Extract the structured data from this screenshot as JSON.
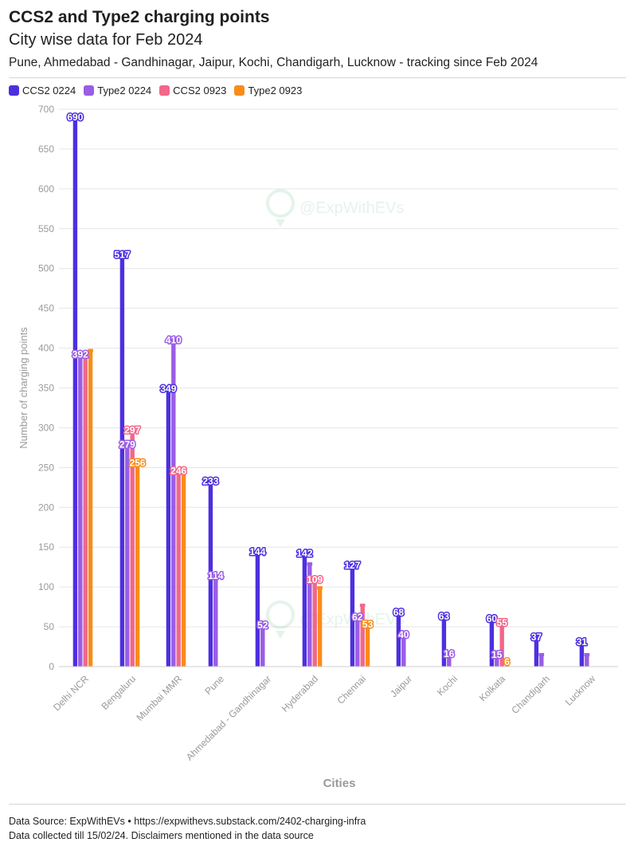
{
  "header": {
    "title": "CCS2 and Type2 charging points",
    "subtitle": "City wise data for Feb 2024",
    "description": "Pune, Ahmedabad - Gandhinagar, Jaipur, Kochi, Chandigarh, Lucknow - tracking since Feb 2024"
  },
  "watermark": "@ExpWithEVs",
  "footer": {
    "source": "Data Source: ExpWithEVs • https://expwithevs.substack.com/2402-charging-infra",
    "note": "Data collected till 15/02/24. Disclaimers mentioned in the data source"
  },
  "colors": {
    "ccs2_0224": "#4e2fe0",
    "type2_0224": "#9b5de5",
    "ccs2_0923": "#f2678a",
    "type2_0923": "#f98c1a",
    "grid": "#e6e6e6",
    "axis_text": "#9a9a9a"
  },
  "chart_data": {
    "type": "bar",
    "title": "CCS2 and Type2 charging points",
    "subtitle": "City wise data for Feb 2024",
    "xlabel": "Cities",
    "ylabel": "Number of charging points",
    "ylim": [
      0,
      700
    ],
    "yticks": [
      0,
      50,
      100,
      150,
      200,
      250,
      300,
      350,
      400,
      450,
      500,
      550,
      600,
      650,
      700
    ],
    "grid": true,
    "legend_position": "top-left",
    "categories": [
      "Delhi NCR",
      "Bengaluru",
      "Mumbai MMR",
      "Pune",
      "Ahmedabad - Gandhinagar",
      "Hyderabad",
      "Chennai",
      "Jaipur",
      "Kochi",
      "Kolkata",
      "Chandigarh",
      "Lucknow"
    ],
    "series": [
      {
        "name": "CCS2 0224",
        "color": "#4e2fe0",
        "values": [
          690,
          517,
          349,
          233,
          144,
          142,
          127,
          68,
          63,
          60,
          37,
          31
        ]
      },
      {
        "name": "Type2 0224",
        "color": "#9b5de5",
        "values": [
          392,
          279,
          410,
          114,
          52,
          129,
          62,
          40,
          16,
          15,
          15,
          15
        ]
      },
      {
        "name": "CCS2 0923",
        "color": "#f2678a",
        "values": [
          394,
          297,
          246,
          null,
          null,
          109,
          77,
          null,
          null,
          55,
          null,
          null
        ]
      },
      {
        "name": "Type2 0923",
        "color": "#f98c1a",
        "values": [
          397,
          256,
          246,
          null,
          null,
          99,
          53,
          null,
          null,
          6,
          null,
          null
        ]
      }
    ],
    "data_labels": [
      {
        "category": "Delhi NCR",
        "series": "CCS2 0224",
        "text": "690"
      },
      {
        "category": "Delhi NCR",
        "series": "Type2 0224",
        "text": "392"
      },
      {
        "category": "Bengaluru",
        "series": "CCS2 0224",
        "text": "517"
      },
      {
        "category": "Bengaluru",
        "series": "Type2 0224",
        "text": "279"
      },
      {
        "category": "Bengaluru",
        "series": "CCS2 0923",
        "text": "297"
      },
      {
        "category": "Bengaluru",
        "series": "Type2 0923",
        "text": "256"
      },
      {
        "category": "Mumbai MMR",
        "series": "CCS2 0224",
        "text": "349"
      },
      {
        "category": "Mumbai MMR",
        "series": "Type2 0224",
        "text": "410"
      },
      {
        "category": "Mumbai MMR",
        "series": "CCS2 0923",
        "text": "246"
      },
      {
        "category": "Pune",
        "series": "CCS2 0224",
        "text": "233"
      },
      {
        "category": "Pune",
        "series": "Type2 0224",
        "text": "114"
      },
      {
        "category": "Ahmedabad - Gandhinagar",
        "series": "CCS2 0224",
        "text": "144"
      },
      {
        "category": "Ahmedabad - Gandhinagar",
        "series": "Type2 0224",
        "text": "52"
      },
      {
        "category": "Hyderabad",
        "series": "CCS2 0224",
        "text": "142"
      },
      {
        "category": "Hyderabad",
        "series": "CCS2 0923",
        "text": "109"
      },
      {
        "category": "Chennai",
        "series": "CCS2 0224",
        "text": "127"
      },
      {
        "category": "Chennai",
        "series": "Type2 0224",
        "text": "62"
      },
      {
        "category": "Chennai",
        "series": "Type2 0923",
        "text": "53"
      },
      {
        "category": "Jaipur",
        "series": "CCS2 0224",
        "text": "68"
      },
      {
        "category": "Jaipur",
        "series": "Type2 0224",
        "text": "40"
      },
      {
        "category": "Kochi",
        "series": "CCS2 0224",
        "text": "63"
      },
      {
        "category": "Kochi",
        "series": "Type2 0224",
        "text": "16"
      },
      {
        "category": "Kolkata",
        "series": "CCS2 0224",
        "text": "60"
      },
      {
        "category": "Kolkata",
        "series": "Type2 0224",
        "text": "15"
      },
      {
        "category": "Kolkata",
        "series": "CCS2 0923",
        "text": "55"
      },
      {
        "category": "Kolkata",
        "series": "Type2 0923",
        "text": "6"
      },
      {
        "category": "Chandigarh",
        "series": "CCS2 0224",
        "text": "37"
      },
      {
        "category": "Lucknow",
        "series": "CCS2 0224",
        "text": "31"
      }
    ]
  }
}
